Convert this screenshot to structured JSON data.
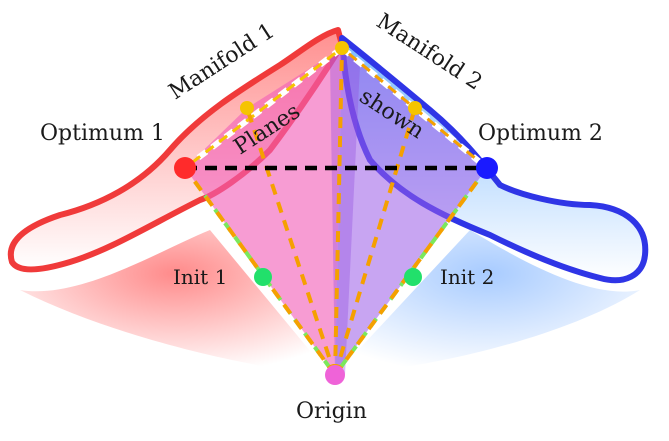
{
  "labels": {
    "manifold1": "Manifold 1",
    "manifold2": "Manifold 2",
    "optimum1": "Optimum 1",
    "optimum2": "Optimum 2",
    "planes": "Planes",
    "shown": "shown",
    "init1": "Init 1",
    "init2": "Init 2",
    "origin": "Origin"
  },
  "colors": {
    "manifold1": "#f03a3a",
    "manifold2": "#2f35e6",
    "plane": "#f25fb8",
    "plane_dark": "#9b5be8",
    "dashed_orange": "#f5a000",
    "dashed_green": "#7be85c",
    "point_yellow": "#f5c400",
    "point_green": "#22e06b",
    "point_origin": "#ef63d8"
  }
}
